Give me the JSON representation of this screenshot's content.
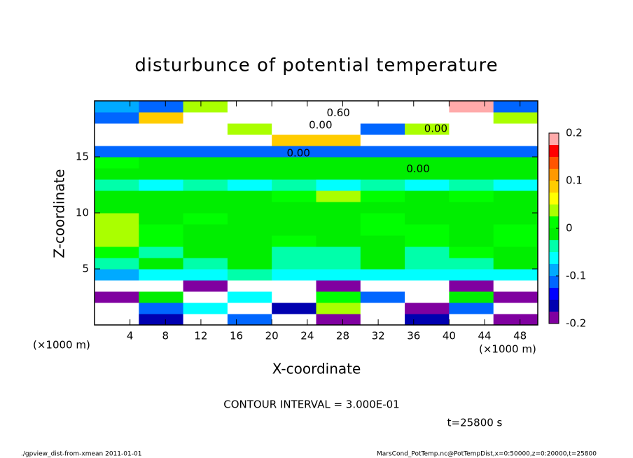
{
  "chart_data": {
    "type": "heatmap",
    "title": "disturbunce of potential temperature",
    "x_label": "X-coordinate",
    "y_label": "Z-coordinate",
    "x_unit": "(×1000 m)",
    "y_unit": "(×1000 m)",
    "contour_interval": "CONTOUR INTERVAL = 3.000E-01",
    "time": "t=25800 s",
    "footer_left": "./gpview_dist-from-xmean  2011-01-01",
    "footer_right": "MarsCond_PotTemp.nc@PotTempDist,x=0:50000,z=0:20000,t=25800",
    "xlim": [
      0,
      50
    ],
    "ylim": [
      0,
      20
    ],
    "xticks": [
      4,
      8,
      12,
      16,
      20,
      24,
      28,
      32,
      36,
      40,
      44,
      48
    ],
    "yticks": [
      5,
      10,
      15
    ],
    "x": [
      2.5,
      7.5,
      12.5,
      17.5,
      22.5,
      27.5,
      32.5,
      37.5,
      42.5,
      47.5
    ],
    "z": [
      0.5,
      1.5,
      2.5,
      3.5,
      4.5,
      5.5,
      6.5,
      7.5,
      8.5,
      9.5,
      10.5,
      11.5,
      12.5,
      13.5,
      14.5,
      15.5,
      16.5,
      17.5,
      18.5,
      19.5
    ],
    "values": [
      [
        -0.3,
        -0.15,
        -0.3,
        -0.1,
        -0.3,
        -0.2,
        -0.3,
        -0.15,
        -0.3,
        -0.2
      ],
      [
        -0.3,
        -0.1,
        -0.05,
        -0.3,
        -0.15,
        0.05,
        -0.3,
        -0.2,
        -0.1,
        -0.3
      ],
      [
        -0.2,
        0.0,
        -0.3,
        -0.05,
        -0.3,
        0.02,
        -0.1,
        -0.3,
        0.0,
        -0.2
      ],
      [
        -0.3,
        -0.3,
        -0.2,
        -0.3,
        -0.3,
        -0.2,
        -0.3,
        -0.3,
        -0.2,
        -0.3
      ],
      [
        -0.08,
        -0.05,
        -0.06,
        -0.04,
        -0.05,
        -0.06,
        -0.07,
        -0.05,
        -0.06,
        -0.05
      ],
      [
        -0.03,
        -0.02,
        -0.04,
        -0.02,
        -0.03,
        -0.03,
        -0.02,
        -0.04,
        -0.03,
        -0.02
      ],
      [
        0.02,
        -0.03,
        -0.02,
        0.0,
        -0.04,
        -0.03,
        -0.02,
        -0.03,
        0.01,
        -0.02
      ],
      [
        0.03,
        0.02,
        -0.01,
        0.0,
        0.01,
        -0.01,
        0.0,
        0.01,
        0.0,
        0.01
      ],
      [
        0.05,
        0.01,
        0.0,
        0.0,
        0.0,
        0.0,
        0.01,
        0.02,
        0.0,
        0.01
      ],
      [
        0.04,
        0.0,
        0.01,
        0.0,
        0.0,
        0.0,
        0.01,
        0.0,
        0.0,
        0.0
      ],
      [
        0.0,
        -0.02,
        0.0,
        -0.01,
        0.0,
        0.0,
        0.0,
        -0.01,
        0.0,
        0.0
      ],
      [
        0.0,
        0.0,
        0.0,
        0.0,
        0.01,
        0.03,
        0.02,
        0.0,
        0.02,
        0.0
      ],
      [
        -0.04,
        -0.05,
        -0.04,
        -0.05,
        -0.04,
        -0.05,
        -0.04,
        -0.05,
        -0.04,
        -0.05
      ],
      [
        0.0,
        0.0,
        0.0,
        0.0,
        0.0,
        0.0,
        0.0,
        0.0,
        0.0,
        0.0
      ],
      [
        0.01,
        0.0,
        0.0,
        0.0,
        0.0,
        0.0,
        0.0,
        0.0,
        0.0,
        0.0
      ],
      [
        -0.12,
        -0.12,
        -0.12,
        -0.12,
        -0.12,
        -0.12,
        -0.12,
        -0.12,
        -0.12,
        -0.12
      ],
      [
        0.3,
        0.3,
        0.3,
        0.3,
        0.08,
        0.1,
        0.3,
        0.3,
        0.3,
        0.3
      ],
      [
        0.3,
        0.3,
        0.3,
        0.05,
        0.3,
        0.3,
        -0.1,
        0.05,
        0.3,
        0.3
      ],
      [
        -0.1,
        0.1,
        0.3,
        0.3,
        0.3,
        0.3,
        0.3,
        0.3,
        0.3,
        0.05
      ],
      [
        -0.08,
        -0.1,
        0.05,
        0.3,
        0.3,
        0.3,
        0.3,
        0.3,
        0.2,
        -0.1
      ]
    ],
    "levels": [
      -0.2,
      -0.175,
      -0.15,
      -0.125,
      -0.1,
      -0.075,
      -0.05,
      -0.025,
      0,
      0.025,
      0.05,
      0.075,
      0.1,
      0.125,
      0.15,
      0.175,
      0.2
    ],
    "colors": [
      "#8000a0",
      "#0000b0",
      "#0000ff",
      "#0066ff",
      "#00aaff",
      "#00ffff",
      "#00ffaa",
      "#00ee00",
      "#00ff00",
      "#aaff00",
      "#ffff00",
      "#ffcc00",
      "#ff9900",
      "#ff5500",
      "#ff0000",
      "#ffaaaa"
    ],
    "colorbar_ticks": [
      -0.2,
      -0.1,
      0,
      0.1,
      0.2
    ],
    "annotations": [
      {
        "text": "0.60",
        "x": 27.5,
        "z": 18.9
      },
      {
        "text": "0.00",
        "x": 25.5,
        "z": 17.8
      },
      {
        "text": "0.00",
        "x": 38.5,
        "z": 17.5
      },
      {
        "text": "0.00",
        "x": 23.0,
        "z": 15.3
      },
      {
        "text": "0.00",
        "x": 36.5,
        "z": 13.9
      }
    ]
  }
}
